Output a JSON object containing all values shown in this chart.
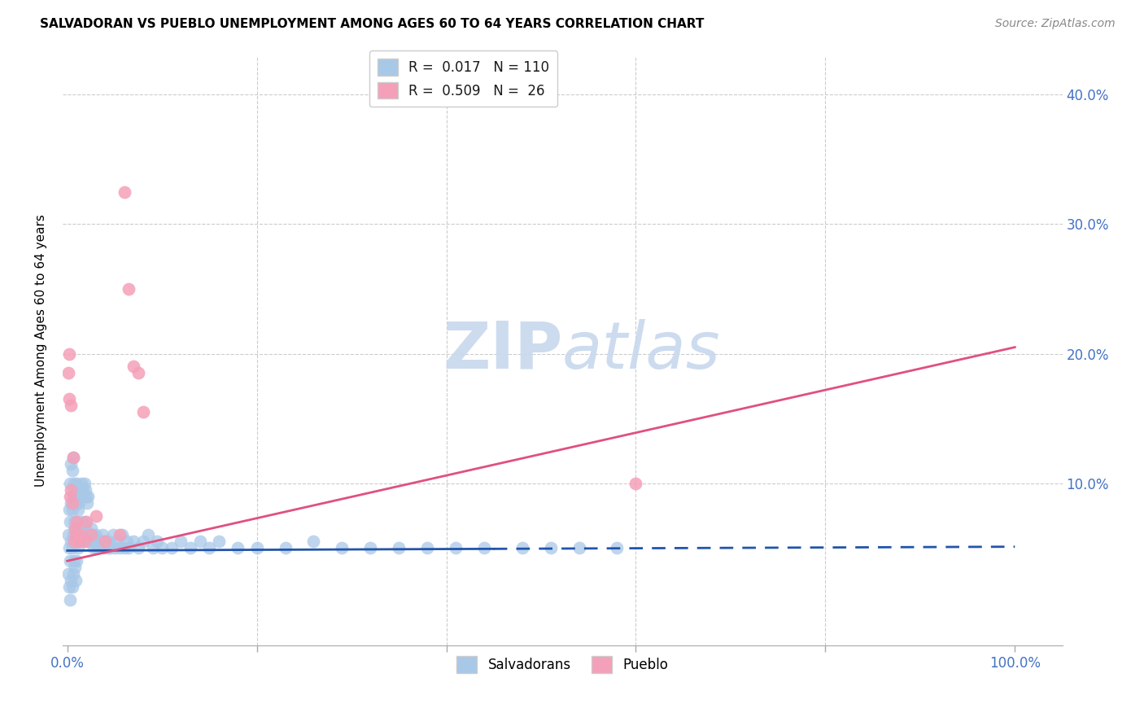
{
  "title": "SALVADORAN VS PUEBLO UNEMPLOYMENT AMONG AGES 60 TO 64 YEARS CORRELATION CHART",
  "source": "Source: ZipAtlas.com",
  "ylabel": "Unemployment Among Ages 60 to 64 years",
  "salvadoran_color": "#a8c8e8",
  "pueblo_color": "#f4a0b8",
  "line_salvadoran_color": "#2255aa",
  "line_pueblo_color": "#e05080",
  "background_color": "#ffffff",
  "watermark_color": "#c8d8ee",
  "grid_color": "#cccccc",
  "tick_color": "#4472c4",
  "xlim": [
    -0.005,
    1.05
  ],
  "ylim": [
    -0.025,
    0.43
  ],
  "yticks": [
    0.0,
    0.1,
    0.2,
    0.3,
    0.4
  ],
  "ytick_labels": [
    "",
    "10.0%",
    "20.0%",
    "30.0%",
    "40.0%"
  ],
  "xticks": [
    0.0,
    0.2,
    0.4,
    0.6,
    0.8,
    1.0
  ],
  "xtick_labels": [
    "0.0%",
    "",
    "",
    "",
    "",
    "100.0%"
  ],
  "salv_line_solid_end": 0.45,
  "salv_line_intercept": 0.048,
  "salv_line_slope": 0.003,
  "pueblo_line_intercept": 0.04,
  "pueblo_line_slope": 0.165,
  "legend1_label": "R =  0.017   N = 110",
  "legend2_label": "R =  0.509   N =  26",
  "bottom_legend1": "Salvadorans",
  "bottom_legend2": "Pueblo",
  "salvadoran_x": [
    0.001,
    0.001,
    0.002,
    0.002,
    0.002,
    0.003,
    0.003,
    0.003,
    0.003,
    0.004,
    0.004,
    0.004,
    0.004,
    0.005,
    0.005,
    0.005,
    0.005,
    0.006,
    0.006,
    0.006,
    0.006,
    0.007,
    0.007,
    0.007,
    0.008,
    0.008,
    0.008,
    0.009,
    0.009,
    0.009,
    0.01,
    0.01,
    0.01,
    0.011,
    0.011,
    0.012,
    0.012,
    0.013,
    0.013,
    0.014,
    0.014,
    0.015,
    0.015,
    0.016,
    0.016,
    0.017,
    0.017,
    0.018,
    0.018,
    0.019,
    0.019,
    0.02,
    0.02,
    0.021,
    0.021,
    0.022,
    0.022,
    0.023,
    0.024,
    0.025,
    0.026,
    0.027,
    0.028,
    0.029,
    0.03,
    0.031,
    0.032,
    0.033,
    0.035,
    0.037,
    0.038,
    0.04,
    0.042,
    0.043,
    0.045,
    0.048,
    0.05,
    0.052,
    0.055,
    0.058,
    0.06,
    0.063,
    0.065,
    0.07,
    0.075,
    0.08,
    0.085,
    0.09,
    0.095,
    0.1,
    0.11,
    0.12,
    0.13,
    0.14,
    0.15,
    0.16,
    0.18,
    0.2,
    0.23,
    0.26,
    0.29,
    0.32,
    0.35,
    0.38,
    0.41,
    0.44,
    0.48,
    0.51,
    0.54,
    0.58
  ],
  "salvadoran_y": [
    0.03,
    0.06,
    0.02,
    0.05,
    0.08,
    0.01,
    0.04,
    0.07,
    0.1,
    0.025,
    0.055,
    0.085,
    0.115,
    0.02,
    0.05,
    0.08,
    0.11,
    0.03,
    0.06,
    0.09,
    0.12,
    0.04,
    0.07,
    0.1,
    0.035,
    0.065,
    0.095,
    0.025,
    0.055,
    0.085,
    0.04,
    0.07,
    0.1,
    0.05,
    0.08,
    0.055,
    0.085,
    0.06,
    0.09,
    0.065,
    0.095,
    0.07,
    0.1,
    0.06,
    0.09,
    0.065,
    0.095,
    0.07,
    0.1,
    0.065,
    0.095,
    0.06,
    0.09,
    0.055,
    0.085,
    0.06,
    0.09,
    0.055,
    0.06,
    0.065,
    0.055,
    0.06,
    0.05,
    0.055,
    0.06,
    0.05,
    0.055,
    0.05,
    0.055,
    0.06,
    0.05,
    0.055,
    0.05,
    0.055,
    0.05,
    0.06,
    0.05,
    0.055,
    0.05,
    0.06,
    0.05,
    0.055,
    0.05,
    0.055,
    0.05,
    0.055,
    0.06,
    0.05,
    0.055,
    0.05,
    0.05,
    0.055,
    0.05,
    0.055,
    0.05,
    0.055,
    0.05,
    0.05,
    0.05,
    0.055,
    0.05,
    0.05,
    0.05,
    0.05,
    0.05,
    0.05,
    0.05,
    0.05,
    0.05,
    0.05
  ],
  "pueblo_x": [
    0.001,
    0.002,
    0.002,
    0.003,
    0.004,
    0.004,
    0.005,
    0.006,
    0.007,
    0.008,
    0.009,
    0.01,
    0.012,
    0.015,
    0.018,
    0.02,
    0.025,
    0.03,
    0.04,
    0.055,
    0.06,
    0.065,
    0.07,
    0.075,
    0.08,
    0.6
  ],
  "pueblo_y": [
    0.185,
    0.2,
    0.165,
    0.09,
    0.16,
    0.095,
    0.085,
    0.12,
    0.055,
    0.065,
    0.06,
    0.07,
    0.055,
    0.06,
    0.055,
    0.07,
    0.06,
    0.075,
    0.055,
    0.06,
    0.325,
    0.25,
    0.19,
    0.185,
    0.155,
    0.1
  ]
}
